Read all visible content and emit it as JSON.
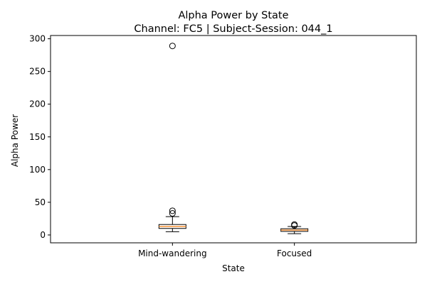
{
  "chart_data": {
    "type": "box",
    "title": "Alpha Power by State",
    "subtitle": "Channel: FC5 | Subject-Session: 044_1",
    "xlabel": "State",
    "ylabel": "Alpha Power",
    "ylim": [
      -12,
      305
    ],
    "yticks": [
      0,
      50,
      100,
      150,
      200,
      250,
      300
    ],
    "ytick_labels": [
      "0",
      "50",
      "100",
      "150",
      "200",
      "250",
      "300"
    ],
    "grid": false,
    "legend": false,
    "categories": [
      "Mind-wandering",
      "Focused"
    ],
    "boxes": [
      {
        "name": "Mind-wandering",
        "whisker_low": 5,
        "q1": 10,
        "median": 13,
        "q3": 16,
        "whisker_high": 28,
        "outliers": [
          33,
          37,
          289
        ]
      },
      {
        "name": "Focused",
        "whisker_low": 2,
        "q1": 5.5,
        "median": 7.5,
        "q3": 9.5,
        "whisker_high": 13,
        "outliers": [
          14.5,
          16
        ]
      }
    ],
    "colors": {
      "box_edge": "#000000",
      "median_line": "#ff7f0e",
      "outlier_edge": "#000000"
    }
  }
}
